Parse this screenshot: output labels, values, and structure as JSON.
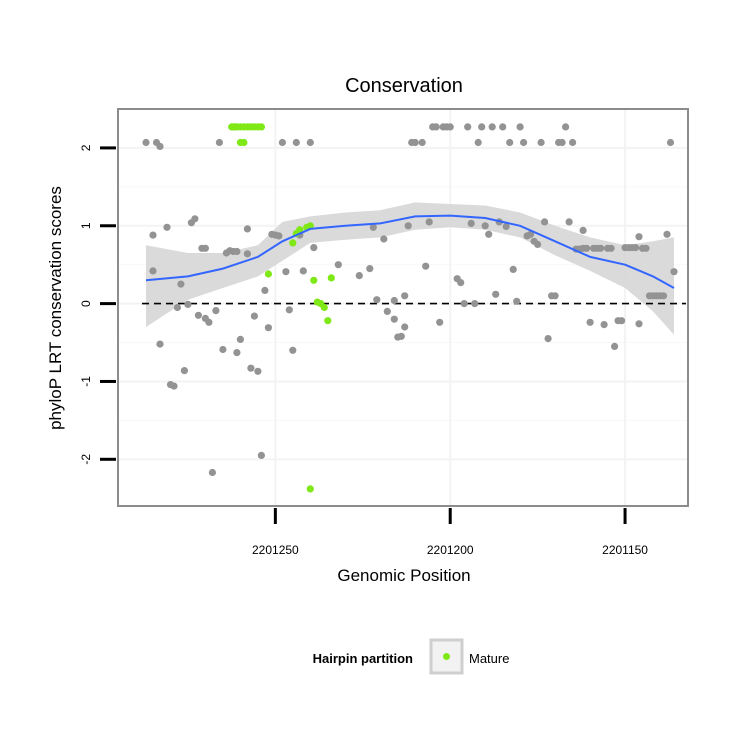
{
  "chart_data": {
    "type": "scatter",
    "title": "Conservation",
    "xlabel": "Genomic Position",
    "ylabel": "phyloP LRT conservation scores",
    "xlim": [
      2201295,
      2201132
    ],
    "ylim": [
      -2.6,
      2.5
    ],
    "x_reversed": true,
    "x_ticks": [
      2201250,
      2201200,
      2201150
    ],
    "x_tick_labels": [
      "2201250",
      "2201200",
      "2201150"
    ],
    "y_ticks": [
      -2,
      -1,
      0,
      1,
      2
    ],
    "y_tick_labels": [
      "-2",
      "-1",
      "0",
      "1",
      "2"
    ],
    "reference_line": {
      "y": 0,
      "style": "dashed"
    },
    "legend": {
      "title": "Hairpin partition",
      "position": "bottom",
      "entries": [
        {
          "label": "Mature",
          "color": "#7fe817"
        }
      ]
    },
    "colors": {
      "other": "#939393",
      "mature": "#7fe817",
      "smooth": "#3366ff",
      "band": "#d3d3d3"
    },
    "series": [
      {
        "name": "Other",
        "points": [
          [
            2201287,
            2.07
          ],
          [
            2201284,
            2.07
          ],
          [
            2201283,
            2.02
          ],
          [
            2201285,
            0.42
          ],
          [
            2201285,
            0.88
          ],
          [
            2201283,
            -0.52
          ],
          [
            2201281,
            0.98
          ],
          [
            2201280,
            -1.04
          ],
          [
            2201279,
            -1.06
          ],
          [
            2201278,
            -0.05
          ],
          [
            2201277,
            0.25
          ],
          [
            2201276,
            -0.86
          ],
          [
            2201275,
            -0.01
          ],
          [
            2201274,
            1.04
          ],
          [
            2201273,
            1.09
          ],
          [
            2201272,
            -0.15
          ],
          [
            2201271,
            0.71
          ],
          [
            2201270,
            0.71
          ],
          [
            2201270,
            -0.19
          ],
          [
            2201269,
            -0.24
          ],
          [
            2201268,
            -2.17
          ],
          [
            2201267,
            -0.09
          ],
          [
            2201266,
            2.07
          ],
          [
            2201265,
            -0.59
          ],
          [
            2201264,
            0.65
          ],
          [
            2201263,
            0.68
          ],
          [
            2201262,
            0.67
          ],
          [
            2201261,
            0.67
          ],
          [
            2201261,
            -0.63
          ],
          [
            2201260,
            -0.46
          ],
          [
            2201258,
            0.96
          ],
          [
            2201258,
            0.64
          ],
          [
            2201257,
            -0.83
          ],
          [
            2201256,
            -0.16
          ],
          [
            2201255,
            -0.87
          ],
          [
            2201254,
            -1.95
          ],
          [
            2201253,
            0.17
          ],
          [
            2201252,
            -0.31
          ],
          [
            2201251,
            0.89
          ],
          [
            2201250,
            0.88
          ],
          [
            2201249,
            0.87
          ],
          [
            2201248,
            2.07
          ],
          [
            2201247,
            0.41
          ],
          [
            2201246,
            -0.08
          ],
          [
            2201245,
            -0.6
          ],
          [
            2201244,
            2.07
          ],
          [
            2201243,
            0.88
          ],
          [
            2201242,
            0.42
          ],
          [
            2201240,
            2.07
          ],
          [
            2201239,
            0.72
          ],
          [
            2201232,
            0.5
          ],
          [
            2201226,
            0.36
          ],
          [
            2201223,
            0.45
          ],
          [
            2201222,
            0.98
          ],
          [
            2201221,
            0.05
          ],
          [
            2201219,
            0.83
          ],
          [
            2201218,
            -0.1
          ],
          [
            2201216,
            -0.2
          ],
          [
            2201216,
            0.04
          ],
          [
            2201215,
            -0.43
          ],
          [
            2201214,
            -0.42
          ],
          [
            2201213,
            -0.3
          ],
          [
            2201213,
            0.1
          ],
          [
            2201212,
            1.0
          ],
          [
            2201211,
            2.07
          ],
          [
            2201210,
            2.07
          ],
          [
            2201208,
            2.07
          ],
          [
            2201207,
            0.48
          ],
          [
            2201206,
            1.05
          ],
          [
            2201205,
            2.27
          ],
          [
            2201204,
            2.27
          ],
          [
            2201203,
            -0.24
          ],
          [
            2201202,
            2.27
          ],
          [
            2201201,
            2.27
          ],
          [
            2201200,
            2.27
          ],
          [
            2201198,
            0.32
          ],
          [
            2201197,
            0.27
          ],
          [
            2201196,
            0.0
          ],
          [
            2201195,
            2.27
          ],
          [
            2201194,
            1.03
          ],
          [
            2201193,
            0.0
          ],
          [
            2201192,
            2.07
          ],
          [
            2201191,
            2.27
          ],
          [
            2201190,
            1.0
          ],
          [
            2201189,
            0.89
          ],
          [
            2201188,
            2.27
          ],
          [
            2201187,
            0.12
          ],
          [
            2201186,
            1.05
          ],
          [
            2201185,
            2.27
          ],
          [
            2201184,
            0.99
          ],
          [
            2201183,
            2.07
          ],
          [
            2201182,
            0.44
          ],
          [
            2201181,
            0.03
          ],
          [
            2201180,
            2.27
          ],
          [
            2201179,
            2.07
          ],
          [
            2201178,
            0.87
          ],
          [
            2201177,
            0.89
          ],
          [
            2201176,
            0.8
          ],
          [
            2201175,
            0.76
          ],
          [
            2201174,
            2.07
          ],
          [
            2201173,
            1.05
          ],
          [
            2201172,
            -0.45
          ],
          [
            2201171,
            0.1
          ],
          [
            2201170,
            0.1
          ],
          [
            2201169,
            2.07
          ],
          [
            2201168,
            2.07
          ],
          [
            2201167,
            2.27
          ],
          [
            2201166,
            1.05
          ],
          [
            2201165,
            2.07
          ],
          [
            2201164,
            0.7
          ],
          [
            2201163,
            0.7
          ],
          [
            2201162,
            0.94
          ],
          [
            2201162,
            0.71
          ],
          [
            2201161,
            0.71
          ],
          [
            2201160,
            -0.24
          ],
          [
            2201159,
            0.71
          ],
          [
            2201158,
            0.71
          ],
          [
            2201157,
            0.71
          ],
          [
            2201156,
            -0.27
          ],
          [
            2201155,
            0.71
          ],
          [
            2201154,
            0.71
          ],
          [
            2201153,
            -0.55
          ],
          [
            2201152,
            -0.22
          ],
          [
            2201151,
            -0.22
          ],
          [
            2201150,
            0.72
          ],
          [
            2201149,
            0.72
          ],
          [
            2201148,
            0.72
          ],
          [
            2201147,
            0.72
          ],
          [
            2201146,
            0.86
          ],
          [
            2201146,
            -0.26
          ],
          [
            2201145,
            0.71
          ],
          [
            2201144,
            0.71
          ],
          [
            2201143,
            0.1
          ],
          [
            2201142,
            0.1
          ],
          [
            2201141,
            0.1
          ],
          [
            2201140,
            0.1
          ],
          [
            2201139,
            0.1
          ],
          [
            2201138,
            0.89
          ],
          [
            2201137,
            2.07
          ],
          [
            2201136,
            0.41
          ]
        ]
      },
      {
        "name": "Mature",
        "points": [
          [
            2201262.5,
            2.27
          ],
          [
            2201262,
            2.27
          ],
          [
            2201261.5,
            2.27
          ],
          [
            2201261,
            2.27
          ],
          [
            2201260,
            2.27
          ],
          [
            2201259,
            2.27
          ],
          [
            2201258,
            2.27
          ],
          [
            2201257,
            2.27
          ],
          [
            2201256,
            2.27
          ],
          [
            2201255,
            2.27
          ],
          [
            2201254,
            2.27
          ],
          [
            2201260,
            2.07
          ],
          [
            2201259,
            2.07
          ],
          [
            2201252,
            0.38
          ],
          [
            2201245,
            0.78
          ],
          [
            2201244,
            0.9
          ],
          [
            2201243,
            0.95
          ],
          [
            2201241,
            0.98
          ],
          [
            2201240,
            1.0
          ],
          [
            2201239,
            0.3
          ],
          [
            2201238,
            0.02
          ],
          [
            2201237,
            0.0
          ],
          [
            2201236,
            -0.05
          ],
          [
            2201235,
            -0.22
          ],
          [
            2201234,
            0.33
          ],
          [
            2201240,
            -2.38
          ]
        ]
      }
    ],
    "smooth": {
      "x": [
        2201287,
        2201275,
        2201265,
        2201255,
        2201248,
        2201240,
        2201230,
        2201220,
        2201210,
        2201200,
        2201190,
        2201180,
        2201170,
        2201160,
        2201150,
        2201142,
        2201136
      ],
      "y": [
        0.3,
        0.35,
        0.45,
        0.6,
        0.8,
        0.96,
        1.0,
        1.03,
        1.12,
        1.13,
        1.1,
        1.0,
        0.8,
        0.6,
        0.5,
        0.35,
        0.2
      ],
      "lower": [
        -0.3,
        0.05,
        0.2,
        0.35,
        0.55,
        0.78,
        0.82,
        0.85,
        0.95,
        0.98,
        0.95,
        0.85,
        0.62,
        0.42,
        0.2,
        -0.1,
        -0.4
      ],
      "upper": [
        0.75,
        0.65,
        0.65,
        0.75,
        1.05,
        1.12,
        1.17,
        1.2,
        1.3,
        1.28,
        1.26,
        1.17,
        1.0,
        0.85,
        0.75,
        0.8,
        0.85
      ]
    }
  }
}
